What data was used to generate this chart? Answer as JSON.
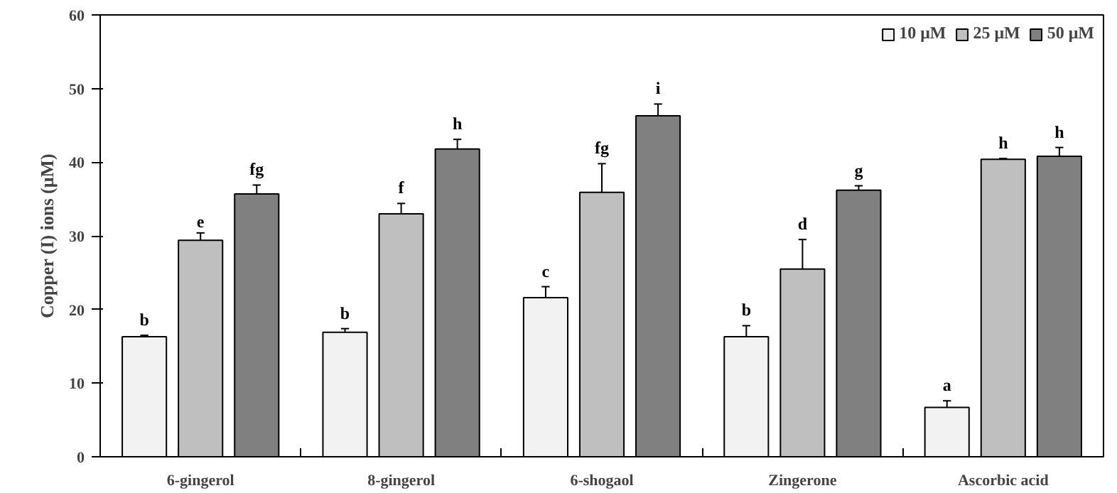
{
  "chart_data": {
    "type": "bar",
    "ylabel": "Copper (I) ions (μM)",
    "categories": [
      "6-gingerol",
      "8-gingerol",
      "6-shogaol",
      "Zingerone",
      "Ascorbic acid"
    ],
    "series": [
      {
        "name": "10 μM",
        "color": "#f2f2f2",
        "values": [
          16.3,
          16.9,
          21.6,
          16.3,
          6.7
        ],
        "errors": [
          [
            16.3,
            16.5
          ],
          [
            16.9,
            17.4
          ],
          [
            21.6,
            23.1
          ],
          [
            16.3,
            17.8
          ],
          [
            6.7,
            7.6
          ]
        ],
        "value_labels": [
          "b",
          "b",
          "c",
          "b",
          "a"
        ]
      },
      {
        "name": "25 μM",
        "color": "#bfbfbf",
        "values": [
          29.4,
          33.0,
          35.9,
          25.5,
          40.4
        ],
        "errors": [
          [
            29.4,
            30.4
          ],
          [
            33.0,
            34.4
          ],
          [
            35.9,
            39.8
          ],
          [
            25.5,
            29.5
          ],
          [
            40.4,
            40.5
          ]
        ],
        "value_labels": [
          "e",
          "f",
          "fg",
          "d",
          "h"
        ]
      },
      {
        "name": "50 μM",
        "color": "#808080",
        "values": [
          35.7,
          41.8,
          46.3,
          36.2,
          40.8
        ],
        "errors": [
          [
            35.7,
            36.9
          ],
          [
            41.8,
            43.1
          ],
          [
            46.3,
            47.9
          ],
          [
            36.2,
            36.8
          ],
          [
            40.8,
            42.0
          ]
        ],
        "value_labels": [
          "fg",
          "h",
          "i",
          "g",
          "h"
        ]
      }
    ],
    "ylim": [
      0,
      60
    ],
    "yticks": [
      0,
      10,
      20,
      30,
      40,
      50,
      60
    ],
    "grid": false,
    "legend": "top right"
  }
}
